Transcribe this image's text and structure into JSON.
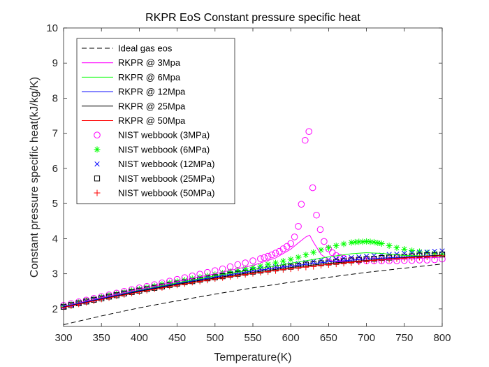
{
  "chart_data": {
    "type": "line",
    "title": "RKPR EoS Constant pressure specific heat",
    "xlabel": "Temperature(K)",
    "ylabel": "Constant pressure specific heat(kJ/kg/K)",
    "xlim": [
      300,
      800
    ],
    "ylim": [
      1.5,
      10
    ],
    "xticks": [
      300,
      350,
      400,
      450,
      500,
      550,
      600,
      650,
      700,
      750,
      800
    ],
    "yticks": [
      2,
      3,
      4,
      5,
      6,
      7,
      8,
      9,
      10
    ],
    "grid": false,
    "legend_location": "top-left",
    "series": [
      {
        "name": "Ideal gas eos",
        "kind": "line",
        "style": "dashed",
        "color": "#000000",
        "x": [
          300,
          350,
          400,
          450,
          500,
          550,
          600,
          650,
          700,
          750,
          800
        ],
        "y": [
          1.55,
          1.8,
          2.03,
          2.23,
          2.42,
          2.6,
          2.76,
          2.9,
          3.04,
          3.16,
          3.28
        ]
      },
      {
        "name": "RKPR @ 3Mpa",
        "kind": "line",
        "style": "solid",
        "color": "#ff00ff",
        "x": [
          300,
          350,
          400,
          450,
          500,
          550,
          580,
          600,
          610,
          620,
          625,
          630,
          640,
          650,
          660,
          680,
          700,
          750,
          800
        ],
        "y": [
          2.07,
          2.32,
          2.56,
          2.78,
          3.0,
          3.24,
          3.45,
          3.7,
          3.88,
          4.05,
          4.1,
          3.9,
          3.55,
          3.4,
          3.34,
          3.35,
          3.38,
          3.42,
          3.47
        ]
      },
      {
        "name": "RKPR @ 6Mpa",
        "kind": "line",
        "style": "solid",
        "color": "#00ff00",
        "x": [
          300,
          350,
          400,
          450,
          500,
          550,
          600,
          650,
          680,
          700,
          720,
          750,
          800
        ],
        "y": [
          2.06,
          2.3,
          2.53,
          2.74,
          2.94,
          3.12,
          3.3,
          3.48,
          3.57,
          3.6,
          3.58,
          3.52,
          3.5
        ]
      },
      {
        "name": "RKPR @ 12Mpa",
        "kind": "line",
        "style": "solid",
        "color": "#0000ff",
        "x": [
          300,
          350,
          400,
          450,
          500,
          550,
          600,
          650,
          700,
          750,
          800
        ],
        "y": [
          2.06,
          2.3,
          2.52,
          2.72,
          2.91,
          3.08,
          3.22,
          3.34,
          3.42,
          3.48,
          3.53
        ]
      },
      {
        "name": "RKPR @ 25Mpa",
        "kind": "line",
        "style": "solid",
        "color": "#000000",
        "x": [
          300,
          350,
          400,
          450,
          500,
          550,
          600,
          650,
          700,
          750,
          800
        ],
        "y": [
          2.05,
          2.28,
          2.5,
          2.7,
          2.88,
          3.04,
          3.18,
          3.3,
          3.38,
          3.46,
          3.53
        ]
      },
      {
        "name": "RKPR @ 50Mpa",
        "kind": "line",
        "style": "solid",
        "color": "#ff0000",
        "x": [
          300,
          350,
          400,
          450,
          500,
          550,
          600,
          650,
          700,
          750,
          800
        ],
        "y": [
          2.04,
          2.27,
          2.48,
          2.67,
          2.85,
          3.01,
          3.15,
          3.27,
          3.37,
          3.45,
          3.52
        ]
      },
      {
        "name": "NIST webbook (3MPa)",
        "kind": "scatter",
        "marker": "circle",
        "color": "#ff00ff",
        "x": [
          300,
          310,
          320,
          330,
          340,
          350,
          360,
          370,
          380,
          390,
          400,
          410,
          420,
          430,
          440,
          450,
          460,
          470,
          480,
          490,
          500,
          510,
          520,
          530,
          540,
          550,
          560,
          565,
          570,
          575,
          580,
          585,
          590,
          595,
          600,
          605,
          610,
          614,
          619,
          624,
          629,
          634,
          639,
          644,
          650,
          655,
          660,
          665,
          670,
          680,
          690,
          700,
          710,
          720,
          730,
          740,
          750,
          760,
          770,
          780,
          790,
          800
        ],
        "y": [
          2.1,
          2.15,
          2.2,
          2.25,
          2.3,
          2.35,
          2.4,
          2.45,
          2.5,
          2.55,
          2.6,
          2.64,
          2.69,
          2.74,
          2.79,
          2.84,
          2.89,
          2.94,
          2.99,
          3.04,
          3.09,
          3.14,
          3.2,
          3.26,
          3.31,
          3.37,
          3.43,
          3.46,
          3.5,
          3.54,
          3.59,
          3.64,
          3.71,
          3.78,
          3.86,
          4.05,
          4.35,
          4.98,
          6.8,
          7.05,
          5.45,
          4.67,
          4.26,
          3.92,
          3.71,
          3.6,
          3.52,
          3.47,
          3.44,
          3.4,
          3.38,
          3.37,
          3.37,
          3.37,
          3.37,
          3.37,
          3.38,
          3.38,
          3.39,
          3.39,
          3.4,
          3.42
        ]
      },
      {
        "name": "NIST webbook (6MPa)",
        "kind": "scatter",
        "marker": "asterisk",
        "color": "#00ff00",
        "x": [
          300,
          310,
          320,
          330,
          340,
          350,
          360,
          370,
          380,
          390,
          400,
          410,
          420,
          430,
          440,
          450,
          460,
          470,
          480,
          490,
          500,
          510,
          520,
          530,
          540,
          550,
          560,
          570,
          580,
          590,
          600,
          610,
          620,
          630,
          640,
          650,
          660,
          670,
          680,
          685,
          690,
          695,
          700,
          705,
          710,
          715,
          720,
          730,
          740,
          750,
          760,
          770,
          780,
          790,
          800
        ],
        "y": [
          2.08,
          2.13,
          2.18,
          2.23,
          2.28,
          2.33,
          2.38,
          2.43,
          2.47,
          2.52,
          2.56,
          2.61,
          2.65,
          2.7,
          2.74,
          2.78,
          2.82,
          2.86,
          2.9,
          2.94,
          2.98,
          3.02,
          3.06,
          3.1,
          3.14,
          3.18,
          3.22,
          3.27,
          3.31,
          3.36,
          3.41,
          3.47,
          3.54,
          3.61,
          3.68,
          3.74,
          3.8,
          3.85,
          3.89,
          3.9,
          3.91,
          3.91,
          3.92,
          3.91,
          3.9,
          3.88,
          3.86,
          3.8,
          3.74,
          3.7,
          3.66,
          3.63,
          3.6,
          3.58,
          3.56
        ]
      },
      {
        "name": "NIST webbook (12MPa)",
        "kind": "scatter",
        "marker": "x",
        "color": "#0000ff",
        "x": [
          300,
          310,
          320,
          330,
          340,
          350,
          360,
          370,
          380,
          390,
          400,
          410,
          420,
          430,
          440,
          450,
          460,
          470,
          480,
          490,
          500,
          510,
          520,
          530,
          540,
          550,
          560,
          570,
          580,
          590,
          600,
          610,
          620,
          630,
          640,
          650,
          660,
          670,
          680,
          690,
          700,
          710,
          720,
          730,
          740,
          750,
          760,
          770,
          780,
          790,
          800
        ],
        "y": [
          2.07,
          2.12,
          2.17,
          2.22,
          2.27,
          2.32,
          2.36,
          2.41,
          2.45,
          2.49,
          2.54,
          2.58,
          2.62,
          2.66,
          2.7,
          2.74,
          2.78,
          2.82,
          2.86,
          2.89,
          2.93,
          2.97,
          3.0,
          3.04,
          3.07,
          3.11,
          3.14,
          3.17,
          3.2,
          3.23,
          3.26,
          3.29,
          3.32,
          3.35,
          3.38,
          3.4,
          3.42,
          3.44,
          3.46,
          3.48,
          3.5,
          3.52,
          3.53,
          3.55,
          3.56,
          3.58,
          3.59,
          3.61,
          3.62,
          3.64,
          3.65
        ]
      },
      {
        "name": "NIST webbook (25MPa)",
        "kind": "scatter",
        "marker": "square",
        "color": "#000000",
        "x": [
          300,
          310,
          320,
          330,
          340,
          350,
          360,
          370,
          380,
          390,
          400,
          410,
          420,
          430,
          440,
          450,
          460,
          470,
          480,
          490,
          500,
          510,
          520,
          530,
          540,
          550,
          560,
          570,
          580,
          590,
          600,
          610,
          620,
          630,
          640,
          650,
          660,
          670,
          680,
          690,
          700,
          710,
          720,
          730,
          740,
          750,
          760,
          770,
          780,
          790,
          800
        ],
        "y": [
          2.06,
          2.11,
          2.16,
          2.21,
          2.26,
          2.3,
          2.35,
          2.39,
          2.44,
          2.48,
          2.52,
          2.56,
          2.6,
          2.64,
          2.68,
          2.72,
          2.76,
          2.79,
          2.83,
          2.87,
          2.9,
          2.93,
          2.97,
          3.0,
          3.03,
          3.06,
          3.09,
          3.12,
          3.15,
          3.18,
          3.2,
          3.23,
          3.26,
          3.28,
          3.3,
          3.32,
          3.34,
          3.36,
          3.38,
          3.4,
          3.42,
          3.43,
          3.45,
          3.46,
          3.48,
          3.49,
          3.5,
          3.52,
          3.53,
          3.54,
          3.55
        ]
      },
      {
        "name": "NIST webbook (50MPa)",
        "kind": "scatter",
        "marker": "plus",
        "color": "#ff0000",
        "x": [
          300,
          310,
          320,
          330,
          340,
          350,
          360,
          370,
          380,
          390,
          400,
          410,
          420,
          430,
          440,
          450,
          460,
          470,
          480,
          490,
          500,
          510,
          520,
          530,
          540,
          550,
          560,
          570,
          580,
          590,
          600,
          610,
          620,
          630,
          640,
          650,
          660,
          670,
          680,
          690,
          700,
          710,
          720,
          730,
          740,
          750,
          760,
          770,
          780,
          790,
          800
        ],
        "y": [
          2.04,
          2.09,
          2.14,
          2.19,
          2.23,
          2.28,
          2.32,
          2.37,
          2.41,
          2.45,
          2.49,
          2.53,
          2.57,
          2.61,
          2.65,
          2.68,
          2.72,
          2.76,
          2.79,
          2.82,
          2.86,
          2.89,
          2.92,
          2.95,
          2.98,
          3.01,
          3.04,
          3.06,
          3.09,
          3.12,
          3.14,
          3.17,
          3.19,
          3.21,
          3.24,
          3.26,
          3.28,
          3.3,
          3.32,
          3.34,
          3.36,
          3.38,
          3.39,
          3.41,
          3.43,
          3.44,
          3.46,
          3.47,
          3.48,
          3.5,
          3.51
        ]
      }
    ]
  }
}
